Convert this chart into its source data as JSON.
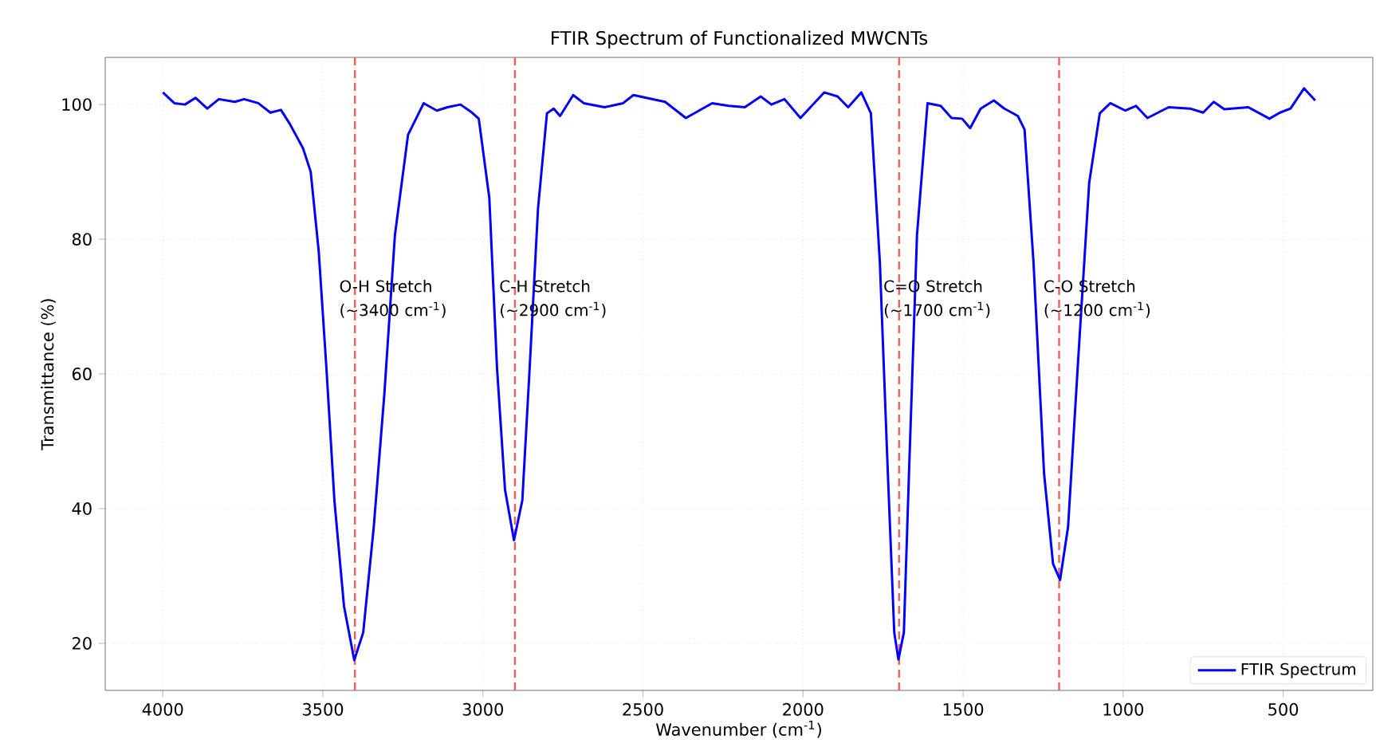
{
  "chart_data": {
    "type": "line",
    "title": "FTIR Spectrum of Functionalized MWCNTs",
    "xlabel": "Wavenumber (cm$^{-1}$)",
    "ylabel": "Transmittance (%)",
    "xlim": [
      4180,
      220
    ],
    "ylim": [
      13,
      107
    ],
    "xticks": [
      4000,
      3500,
      3000,
      2500,
      2000,
      1500,
      1000,
      500
    ],
    "yticks": [
      20,
      40,
      60,
      80,
      100
    ],
    "grid": true,
    "legend": "bottom right",
    "series": [
      {
        "name": "FTIR Spectrum",
        "color": "#0000ff",
        "x": [
          4000,
          3964,
          3931,
          3898,
          3861,
          3825,
          3775,
          3746,
          3702,
          3664,
          3631,
          3603,
          3562,
          3538,
          3513,
          3489,
          3464,
          3434,
          3402,
          3374,
          3341,
          3308,
          3275,
          3234,
          3185,
          3144,
          3111,
          3070,
          3034,
          3013,
          2980,
          2956,
          2931,
          2903,
          2877,
          2854,
          2828,
          2800,
          2779,
          2759,
          2718,
          2685,
          2620,
          2562,
          2530,
          2431,
          2366,
          2284,
          2232,
          2182,
          2132,
          2099,
          2058,
          2008,
          1934,
          1892,
          1859,
          1818,
          1788,
          1760,
          1735,
          1715,
          1702,
          1685,
          1669,
          1644,
          1611,
          1570,
          1536,
          1503,
          1478,
          1445,
          1404,
          1371,
          1329,
          1308,
          1280,
          1247,
          1219,
          1197,
          1172,
          1142,
          1106,
          1073,
          1040,
          993,
          960,
          924,
          858,
          791,
          750,
          717,
          684,
          609,
          543,
          510,
          477,
          435,
          400
        ],
        "values": [
          101.8,
          100.2,
          100,
          101,
          99.4,
          100.8,
          100.4,
          100.8,
          100.2,
          98.8,
          99.2,
          97.1,
          93.5,
          90,
          78.2,
          60.9,
          41.2,
          25.5,
          17.5,
          21.6,
          37.3,
          57,
          80.6,
          95.5,
          100.2,
          99.1,
          99.6,
          100,
          98.8,
          97.9,
          86.1,
          60.9,
          42.8,
          35.3,
          41.2,
          60.9,
          84.5,
          98.7,
          99.4,
          98.3,
          101.4,
          100.2,
          99.6,
          100.2,
          101.4,
          100.4,
          98,
          100.2,
          99.8,
          99.6,
          101.2,
          100,
          100.8,
          98,
          101.8,
          101.2,
          99.6,
          101.8,
          98.7,
          76.6,
          45.2,
          21.6,
          17.6,
          21.6,
          45.2,
          80.6,
          100.2,
          99.8,
          98,
          97.9,
          96.5,
          99.4,
          100.6,
          99.4,
          98.3,
          96.3,
          76.6,
          45.2,
          31.8,
          29.4,
          37.3,
          60.9,
          88.4,
          98.7,
          100.2,
          99.1,
          99.8,
          98,
          99.6,
          99.4,
          98.8,
          100.4,
          99.3,
          99.6,
          97.9,
          98.8,
          99.4,
          102.4,
          100.6
        ]
      }
    ],
    "ref_lines": [
      {
        "axis": "x",
        "value": 3400,
        "color": "#ff5a5a",
        "line_style": "dashed"
      },
      {
        "axis": "x",
        "value": 2900,
        "color": "#ff5a5a",
        "line_style": "dashed"
      },
      {
        "axis": "x",
        "value": 1700,
        "color": "#ff5a5a",
        "line_style": "dashed"
      },
      {
        "axis": "x",
        "value": 1200,
        "color": "#ff5a5a",
        "line_style": "dashed"
      }
    ],
    "annotations": [
      {
        "text": "O-H Stretch (~3400 cm$^{-1}$)",
        "x": 3400,
        "y": 74
      },
      {
        "text": "C-H Stretch (~2900 cm$^{-1}$)",
        "x": 2900,
        "y": 74
      },
      {
        "text": "C=O Stretch (~1700 cm$^{-1}$)",
        "x": 1700,
        "y": 74
      },
      {
        "text": "C-O Stretch (~1200 cm$^{-1}$)",
        "x": 1200,
        "y": 74
      }
    ]
  }
}
